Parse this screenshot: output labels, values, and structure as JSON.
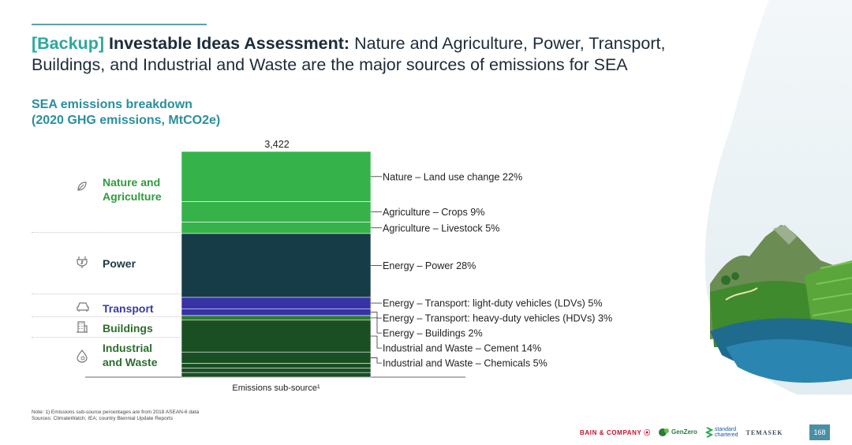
{
  "header": {
    "tag": "[Backup]",
    "bold": "Investable Ideas Assessment:",
    "rest": " Nature and Agriculture, Power, Transport, Buildings, and Industrial and Waste are the major sources of emissions for SEA"
  },
  "subtitle_line1": "SEA emissions breakdown",
  "subtitle_line2": "(2020 GHG emissions, MtCO2e)",
  "categories": [
    {
      "name_line1": "Nature and",
      "name_line2": "Agriculture",
      "icon": "leaf-icon",
      "color": "#2f9b3c"
    },
    {
      "name_line1": "Power",
      "name_line2": "",
      "icon": "plug-icon",
      "color": "#1d3a45"
    },
    {
      "name_line1": "Transport",
      "name_line2": "",
      "icon": "car-icon",
      "color": "#3b3aa5"
    },
    {
      "name_line1": "Buildings",
      "name_line2": "",
      "icon": "building-icon",
      "color": "#2c6e2e"
    },
    {
      "name_line1": "Industrial",
      "name_line2": "and Waste",
      "icon": "factory-icon",
      "color": "#2c6e2e"
    }
  ],
  "chart_data": {
    "type": "bar",
    "stacked": true,
    "categories": [
      "Emissions sub-source¹"
    ],
    "xlabel": "Emissions sub-source¹",
    "total_label": "3,422",
    "total": 3422,
    "series": [
      {
        "name": "Nature – Land use change 22%",
        "percent": 22,
        "color": "#36b24a"
      },
      {
        "name": "Agriculture – Crops 9%",
        "percent": 9,
        "color": "#36b24a"
      },
      {
        "name": "Agriculture – Livestock 5%",
        "percent": 5,
        "color": "#36b24a"
      },
      {
        "name": "Energy – Power 28%",
        "percent": 28,
        "color": "#163c47"
      },
      {
        "name": "Energy – Transport: light-duty vehicles (LDVs) 5%",
        "percent": 5,
        "color": "#3633a6"
      },
      {
        "name": "Energy – Transport: heavy-duty vehicles (HDVs) 3%",
        "percent": 3,
        "color": "#3633a6"
      },
      {
        "name": "Energy – Buildings 2%",
        "percent": 2,
        "color": "#2f7a34"
      },
      {
        "name": "Industrial and Waste – Cement 14%",
        "percent": 14,
        "color": "#1a4f24"
      },
      {
        "name": "Industrial and Waste – Chemicals 5%",
        "percent": 5,
        "color": "#1a4f24"
      },
      {
        "name": "",
        "percent": 2,
        "color": "#1a4f24"
      },
      {
        "name": "",
        "percent": 2,
        "color": "#1a4f24"
      },
      {
        "name": "",
        "percent": 2,
        "color": "#1a4f24"
      }
    ]
  },
  "note_line1": "Note: 1) Emissions sub-source percentages are from 2018 ASEAN-6 data",
  "note_line2": "Sources: ClimateWatch; IEA; country Biennial Update Reports",
  "footer": {
    "bain": "BAIN & COMPANY",
    "genzero": "GenZero",
    "stdch_1": "standard",
    "stdch_2": "chartered",
    "temasek": "TEMASEK",
    "page": "168"
  }
}
